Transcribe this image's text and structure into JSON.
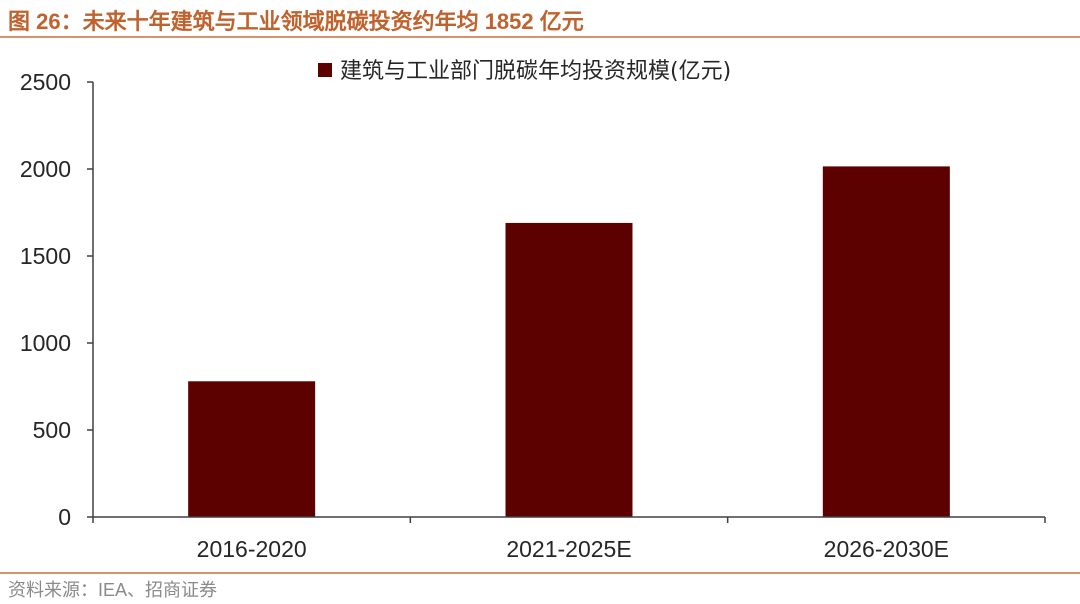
{
  "figure": {
    "title": "图 26：未来十年建筑与工业领域脱碳投资约年均 1852 亿元",
    "source": "资料来源：IEA、招商证券"
  },
  "colors": {
    "bar": "#5c0000",
    "title": "#c0622d",
    "rule": "#d9936c",
    "axis": "#404040"
  },
  "chart_data": {
    "type": "bar",
    "categories": [
      "2016-2020",
      "2021-2025E",
      "2026-2030E"
    ],
    "series": [
      {
        "name": "建筑与工业部门脱碳年均投资规模(亿元)",
        "values": [
          780,
          1690,
          2015
        ]
      }
    ],
    "title": "",
    "xlabel": "",
    "ylabel": "",
    "ylim": [
      0,
      2500
    ],
    "yticks": [
      0,
      500,
      1000,
      1500,
      2000,
      2500
    ],
    "grid": false,
    "legend_position": "top-center"
  }
}
